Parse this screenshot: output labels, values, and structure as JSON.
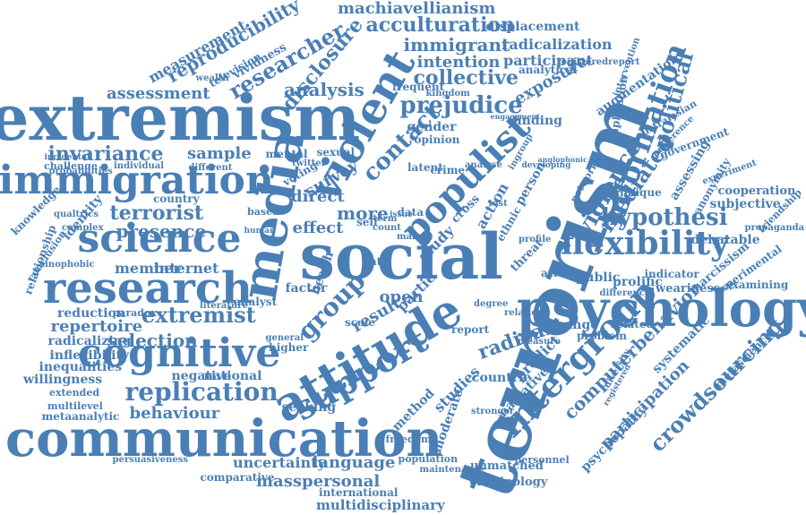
{
  "colors": {
    "word": "#4a7fb5",
    "background": "#ffffff"
  },
  "words": [
    {
      "text": "terrorism"
    },
    {
      "text": "social"
    },
    {
      "text": "extremism"
    },
    {
      "text": "communication"
    },
    {
      "text": "attitude"
    },
    {
      "text": "psychology"
    },
    {
      "text": "media"
    },
    {
      "text": "violent"
    },
    {
      "text": "cognitive"
    },
    {
      "text": "research"
    },
    {
      "text": "immigration"
    },
    {
      "text": "science"
    },
    {
      "text": "populist"
    },
    {
      "text": "support"
    },
    {
      "text": "intergroup"
    },
    {
      "text": "flexibility"
    },
    {
      "text": "replication"
    },
    {
      "text": "information"
    },
    {
      "text": "violence"
    },
    {
      "text": "hypothesi"
    },
    {
      "text": "prejudice"
    },
    {
      "text": "contact"
    },
    {
      "text": "researcher"
    },
    {
      "text": "disclosure"
    },
    {
      "text": "collective"
    },
    {
      "text": "acculturation"
    },
    {
      "text": "reproducibility"
    },
    {
      "text": "crowdsourcing"
    },
    {
      "text": "computerbehavior"
    },
    {
      "text": "machiavellianism"
    },
    {
      "text": "immigrant"
    },
    {
      "text": "radicalization"
    },
    {
      "text": "terrorist"
    },
    {
      "text": "presence"
    },
    {
      "text": "extremist"
    },
    {
      "text": "selection"
    },
    {
      "text": "behaviour"
    },
    {
      "text": "language"
    },
    {
      "text": "masspersonal"
    },
    {
      "text": "uncertainty"
    },
    {
      "text": "multidisciplinary"
    },
    {
      "text": "international"
    },
    {
      "text": "criminology"
    },
    {
      "text": "unmatched"
    },
    {
      "text": "personnel"
    },
    {
      "text": "radical"
    },
    {
      "text": "exposure"
    },
    {
      "text": "intention"
    },
    {
      "text": "participant"
    },
    {
      "text": "displacement"
    },
    {
      "text": "measurement"
    },
    {
      "text": "assessment"
    },
    {
      "text": "analysis"
    },
    {
      "text": "invariance"
    },
    {
      "text": "sample"
    },
    {
      "text": "survey"
    },
    {
      "text": "direct"
    },
    {
      "text": "more"
    },
    {
      "text": "effect"
    },
    {
      "text": "group"
    },
    {
      "text": "result"
    },
    {
      "text": "partie"
    },
    {
      "text": "open"
    },
    {
      "text": "member"
    },
    {
      "text": "internet"
    },
    {
      "text": "repertoire"
    },
    {
      "text": "reduction"
    },
    {
      "text": "radicalizing"
    },
    {
      "text": "inflexibility"
    },
    {
      "text": "inequalities"
    },
    {
      "text": "willingness"
    },
    {
      "text": "negative"
    },
    {
      "text": "national"
    },
    {
      "text": "metaanalytic"
    },
    {
      "text": "multilevel"
    },
    {
      "text": "extended"
    },
    {
      "text": "political"
    },
    {
      "text": "mediated"
    },
    {
      "text": "augmentation"
    },
    {
      "text": "subjective"
    },
    {
      "text": "cooperation"
    },
    {
      "text": "debatable"
    },
    {
      "text": "narcissism"
    },
    {
      "text": "experimental"
    },
    {
      "text": "examining"
    },
    {
      "text": "metascience"
    },
    {
      "text": "public"
    },
    {
      "text": "prolific"
    },
    {
      "text": "weariness"
    },
    {
      "text": "change"
    },
    {
      "text": "related"
    },
    {
      "text": "problem"
    },
    {
      "text": "attack"
    },
    {
      "text": "systematic"
    },
    {
      "text": "participation"
    },
    {
      "text": "psychopathy"
    },
    {
      "text": "narrative"
    },
    {
      "text": "predict"
    },
    {
      "text": "countrie"
    },
    {
      "text": "studies"
    },
    {
      "text": "method"
    },
    {
      "text": "moderate"
    },
    {
      "text": "stronger"
    },
    {
      "text": "report"
    },
    {
      "text": "seeking"
    },
    {
      "text": "comparative"
    },
    {
      "text": "persuasiveness"
    },
    {
      "text": "freedom"
    },
    {
      "text": "population"
    },
    {
      "text": "maintenance"
    },
    {
      "text": "identity"
    },
    {
      "text": "relationship"
    },
    {
      "text": "knowledge"
    },
    {
      "text": "conclusion"
    },
    {
      "text": "sinophobic"
    },
    {
      "text": "paradox"
    },
    {
      "text": "country"
    },
    {
      "text": "challenge"
    },
    {
      "text": "incidental"
    },
    {
      "text": "probabilities"
    },
    {
      "text": "individual"
    },
    {
      "text": "different"
    },
    {
      "text": "television"
    },
    {
      "text": "vividness"
    },
    {
      "text": "frequent"
    },
    {
      "text": "gender"
    },
    {
      "text": "opinion"
    },
    {
      "text": "finding"
    },
    {
      "text": "mental"
    },
    {
      "text": "sexual"
    },
    {
      "text": "voting"
    },
    {
      "text": "twitter"
    },
    {
      "text": "latent"
    },
    {
      "text": "crime"
    },
    {
      "text": "cross"
    },
    {
      "text": "action"
    },
    {
      "text": "person"
    },
    {
      "text": "threat"
    },
    {
      "text": "data"
    },
    {
      "text": "study"
    },
    {
      "text": "rate"
    },
    {
      "text": "self"
    },
    {
      "text": "factor"
    },
    {
      "text": "health"
    },
    {
      "text": "scale"
    },
    {
      "text": "higher"
    },
    {
      "text": "general"
    },
    {
      "text": "analyst"
    },
    {
      "text": "literature"
    },
    {
      "text": "based"
    },
    {
      "text": "human"
    },
    {
      "text": "complex"
    },
    {
      "text": "qualtrics"
    },
    {
      "text": "assessing"
    },
    {
      "text": "anonymity"
    },
    {
      "text": "government"
    },
    {
      "text": "experiment"
    },
    {
      "text": "friendship"
    },
    {
      "text": "propaganda"
    },
    {
      "text": "technique"
    },
    {
      "text": "network"
    },
    {
      "text": "implication"
    },
    {
      "text": "intervention"
    },
    {
      "text": "registeredreport"
    },
    {
      "text": "analytical"
    },
    {
      "text": "engagement"
    },
    {
      "text": "developing"
    },
    {
      "text": "anglophonic"
    },
    {
      "text": "ethnic"
    },
    {
      "text": "profile"
    },
    {
      "text": "degree"
    },
    {
      "text": "relation"
    },
    {
      "text": "measure"
    },
    {
      "text": "diversity"
    },
    {
      "text": "indicator"
    },
    {
      "text": "difference"
    },
    {
      "text": "ingroup"
    },
    {
      "text": "analyse"
    },
    {
      "text": "term"
    },
    {
      "text": "issue"
    },
    {
      "text": "count"
    },
    {
      "text": "many"
    },
    {
      "text": "test"
    },
    {
      "text": "wealth"
    },
    {
      "text": "kingdom"
    },
    {
      "text": "australasian"
    },
    {
      "text": "preference"
    },
    {
      "text": "registered"
    },
    {
      "text": "normative"
    }
  ]
}
